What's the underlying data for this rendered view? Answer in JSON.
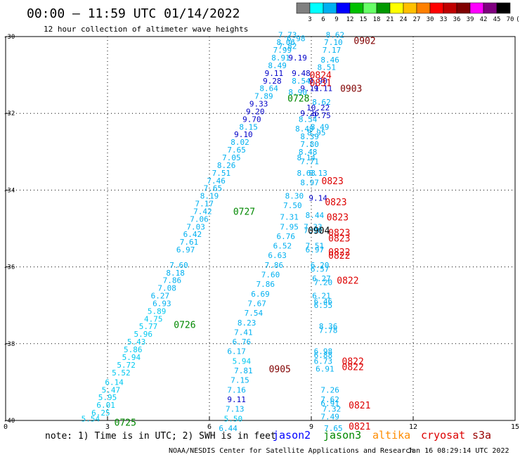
{
  "header": {
    "title": "00:00 – 11:59 UTC 01/14/2022",
    "subtitle": "12 hour collection of altimeter wave heights"
  },
  "colorbar": {
    "labels": [
      "3",
      "6",
      "9",
      "12",
      "15",
      "18",
      "21",
      "24",
      "27",
      "30",
      "33",
      "36",
      "39",
      "42",
      "45",
      "70",
      "(ft)"
    ],
    "colors": [
      "#808080",
      "#00ffff",
      "#00b0f0",
      "#0000ff",
      "#00c000",
      "#66ff66",
      "#009900",
      "#ffff00",
      "#ffc000",
      "#ff8000",
      "#ff0000",
      "#c00000",
      "#800000",
      "#ff00ff",
      "#800080",
      "#000000"
    ]
  },
  "footer": {
    "note": "note: 1) Time is in UTC; 2) SWH is in feet",
    "missions": [
      {
        "name": "jason2",
        "color": "#0000ff"
      },
      {
        "name": "jason3",
        "color": "#008800"
      },
      {
        "name": "altika",
        "color": "#ff8c00"
      },
      {
        "name": "cryosat",
        "color": "#dd0000"
      },
      {
        "name": "s3a",
        "color": "#990000"
      }
    ],
    "credit": "NOAA/NESDIS Center for Satellite Applications and Research",
    "timestamp": "Jan 16 08:29:14 UTC 2022"
  },
  "chart_data": {
    "type": "scatter",
    "xlim": [
      0,
      15
    ],
    "ylim": [
      -40,
      -30
    ],
    "xticks": [
      "0",
      "3",
      "6",
      "9",
      "12",
      "15"
    ],
    "yticks": [
      "-30",
      "-32",
      "-34",
      "-36",
      "-38",
      "-40"
    ],
    "grid": true,
    "points": [
      {
        "x": 2.5,
        "y": -39.95,
        "v": "5.54",
        "c": "#00c8f0"
      },
      {
        "x": 2.8,
        "y": -39.8,
        "v": "6.25",
        "c": "#00c8f0"
      },
      {
        "x": 2.95,
        "y": -39.6,
        "v": "6.01",
        "c": "#00c8f0"
      },
      {
        "x": 3.0,
        "y": -39.4,
        "v": "5.95",
        "c": "#00c8f0"
      },
      {
        "x": 3.1,
        "y": -39.2,
        "v": "5.47",
        "c": "#00c8f0"
      },
      {
        "x": 3.2,
        "y": -39.0,
        "v": "6.14",
        "c": "#00c8f0"
      },
      {
        "x": 3.4,
        "y": -38.75,
        "v": "5.52",
        "c": "#00c8f0"
      },
      {
        "x": 3.55,
        "y": -38.55,
        "v": "5.72",
        "c": "#00c8f0"
      },
      {
        "x": 3.7,
        "y": -38.35,
        "v": "5.94",
        "c": "#00c8f0"
      },
      {
        "x": 3.75,
        "y": -38.15,
        "v": "5.86",
        "c": "#00c8f0"
      },
      {
        "x": 3.85,
        "y": -37.95,
        "v": "5.43",
        "c": "#00c8f0"
      },
      {
        "x": 4.05,
        "y": -37.75,
        "v": "5.96",
        "c": "#00c8f0"
      },
      {
        "x": 4.2,
        "y": -37.55,
        "v": "5.77",
        "c": "#00c8f0"
      },
      {
        "x": 4.35,
        "y": -37.35,
        "v": "4.75",
        "c": "#00c8f0"
      },
      {
        "x": 4.45,
        "y": -37.15,
        "v": "5.89",
        "c": "#00c8f0"
      },
      {
        "x": 4.6,
        "y": -36.95,
        "v": "6.93",
        "c": "#00b0f0"
      },
      {
        "x": 4.55,
        "y": -36.75,
        "v": "6.27",
        "c": "#00b0f0"
      },
      {
        "x": 4.75,
        "y": -36.55,
        "v": "7.08",
        "c": "#00b0f0"
      },
      {
        "x": 4.9,
        "y": -36.35,
        "v": "7.86",
        "c": "#00b0f0"
      },
      {
        "x": 5.0,
        "y": -36.15,
        "v": "8.18",
        "c": "#00b0f0"
      },
      {
        "x": 5.1,
        "y": -35.95,
        "v": "7.60",
        "c": "#00b0f0"
      },
      {
        "x": 5.3,
        "y": -35.55,
        "v": "6.97",
        "c": "#00b0f0"
      },
      {
        "x": 5.4,
        "y": -35.35,
        "v": "7.61",
        "c": "#00b0f0"
      },
      {
        "x": 5.5,
        "y": -35.15,
        "v": "6.42",
        "c": "#00b0f0"
      },
      {
        "x": 5.6,
        "y": -34.95,
        "v": "7.03",
        "c": "#00b0f0"
      },
      {
        "x": 5.7,
        "y": -34.75,
        "v": "7.06",
        "c": "#00b0f0"
      },
      {
        "x": 5.8,
        "y": -34.55,
        "v": "7.42",
        "c": "#00b0f0"
      },
      {
        "x": 5.85,
        "y": -34.35,
        "v": "7.17",
        "c": "#00b0f0"
      },
      {
        "x": 6.0,
        "y": -34.15,
        "v": "8.19",
        "c": "#00b0f0"
      },
      {
        "x": 6.1,
        "y": -33.95,
        "v": "7.65",
        "c": "#00b0f0"
      },
      {
        "x": 6.2,
        "y": -33.75,
        "v": "7.46",
        "c": "#00b0f0"
      },
      {
        "x": 6.35,
        "y": -33.55,
        "v": "7.51",
        "c": "#00b0f0"
      },
      {
        "x": 6.5,
        "y": -33.35,
        "v": "8.26",
        "c": "#00b0f0"
      },
      {
        "x": 6.65,
        "y": -33.15,
        "v": "7.05",
        "c": "#00b0f0"
      },
      {
        "x": 6.8,
        "y": -32.95,
        "v": "7.65",
        "c": "#00b0f0"
      },
      {
        "x": 6.9,
        "y": -32.75,
        "v": "8.02",
        "c": "#00b0f0"
      },
      {
        "x": 7.0,
        "y": -32.55,
        "v": "9.10",
        "c": "#0000c8"
      },
      {
        "x": 7.15,
        "y": -32.35,
        "v": "8.15",
        "c": "#00b0f0"
      },
      {
        "x": 7.25,
        "y": -32.15,
        "v": "9.70",
        "c": "#0000c8"
      },
      {
        "x": 7.35,
        "y": -31.95,
        "v": "9.20",
        "c": "#0000c8"
      },
      {
        "x": 7.45,
        "y": -31.75,
        "v": "9.33",
        "c": "#0000c8"
      },
      {
        "x": 7.6,
        "y": -31.55,
        "v": "7.89",
        "c": "#00b0f0"
      },
      {
        "x": 7.75,
        "y": -31.35,
        "v": "8.64",
        "c": "#00b0f0"
      },
      {
        "x": 7.85,
        "y": -31.15,
        "v": "9.28",
        "c": "#0000c8"
      },
      {
        "x": 7.9,
        "y": -30.95,
        "v": "9.11",
        "c": "#0000c8"
      },
      {
        "x": 8.0,
        "y": -30.75,
        "v": "8.49",
        "c": "#00b0f0"
      },
      {
        "x": 8.1,
        "y": -30.55,
        "v": "8.91",
        "c": "#00b0f0"
      },
      {
        "x": 8.15,
        "y": -30.35,
        "v": "7.99",
        "c": "#00b0f0"
      },
      {
        "x": 8.25,
        "y": -30.15,
        "v": "8.06",
        "c": "#00b0f0"
      },
      {
        "x": 8.3,
        "y": -29.95,
        "v": "7.73",
        "c": "#00b0f0"
      },
      {
        "x": 8.55,
        "y": -30.05,
        "v": "6.98",
        "c": "#00b0f0"
      },
      {
        "x": 8.3,
        "y": -30.25,
        "v": "7.82",
        "c": "#00b0f0"
      },
      {
        "x": 8.6,
        "y": -30.55,
        "v": "9.19",
        "c": "#0000c8"
      },
      {
        "x": 8.7,
        "y": -30.95,
        "v": "9.48",
        "c": "#0000c8"
      },
      {
        "x": 8.7,
        "y": -31.15,
        "v": "8.54",
        "c": "#00b0f0"
      },
      {
        "x": 8.95,
        "y": -31.35,
        "v": "9.11",
        "c": "#0000c8"
      },
      {
        "x": 9.35,
        "y": -31.35,
        "v": "9.11",
        "c": "#0000c8"
      },
      {
        "x": 8.6,
        "y": -31.45,
        "v": "8.90",
        "c": "#00b0f0"
      },
      {
        "x": 9.2,
        "y": -31.15,
        "v": "9.90",
        "c": "#0000c8"
      },
      {
        "x": 9.2,
        "y": -31.85,
        "v": "10.22",
        "c": "#0000c8"
      },
      {
        "x": 8.95,
        "y": -32.0,
        "v": "9.26",
        "c": "#0000c8"
      },
      {
        "x": 9.3,
        "y": -32.05,
        "v": "9.75",
        "c": "#0000c8"
      },
      {
        "x": 9.7,
        "y": -29.95,
        "v": "8.62",
        "c": "#00b0f0"
      },
      {
        "x": 9.65,
        "y": -30.15,
        "v": "7.10",
        "c": "#00b0f0"
      },
      {
        "x": 9.6,
        "y": -30.35,
        "v": "7.17",
        "c": "#00b0f0"
      },
      {
        "x": 9.55,
        "y": -30.6,
        "v": "8.46",
        "c": "#00b0f0"
      },
      {
        "x": 9.45,
        "y": -30.8,
        "v": "8.51",
        "c": "#00b0f0"
      },
      {
        "x": 9.3,
        "y": -31.7,
        "v": "8.62",
        "c": "#00b0f0"
      },
      {
        "x": 8.9,
        "y": -32.15,
        "v": "8.54",
        "c": "#00b0f0"
      },
      {
        "x": 9.25,
        "y": -32.35,
        "v": "8.49",
        "c": "#00b0f0"
      },
      {
        "x": 8.8,
        "y": -32.4,
        "v": "8.49",
        "c": "#00b0f0"
      },
      {
        "x": 9.15,
        "y": -32.5,
        "v": "8.95",
        "c": "#00b0f0"
      },
      {
        "x": 8.95,
        "y": -32.6,
        "v": "8.39",
        "c": "#00b0f0"
      },
      {
        "x": 8.95,
        "y": -32.8,
        "v": "7.80",
        "c": "#00b0f0"
      },
      {
        "x": 8.9,
        "y": -33.0,
        "v": "8.48",
        "c": "#00b0f0"
      },
      {
        "x": 8.85,
        "y": -33.15,
        "v": "8.14",
        "c": "#00b0f0"
      },
      {
        "x": 8.95,
        "y": -33.25,
        "v": "7.71",
        "c": "#00b0f0"
      },
      {
        "x": 8.85,
        "y": -33.55,
        "v": "8.63",
        "c": "#00b0f0"
      },
      {
        "x": 9.2,
        "y": -33.55,
        "v": "8.13",
        "c": "#00b0f0"
      },
      {
        "x": 8.95,
        "y": -33.8,
        "v": "8.97",
        "c": "#00b0f0"
      },
      {
        "x": 8.5,
        "y": -34.15,
        "v": "8.30",
        "c": "#00b0f0"
      },
      {
        "x": 9.2,
        "y": -34.2,
        "v": "9.14",
        "c": "#0000c8"
      },
      {
        "x": 8.45,
        "y": -34.4,
        "v": "7.50",
        "c": "#00b0f0"
      },
      {
        "x": 8.35,
        "y": -34.7,
        "v": "7.31",
        "c": "#00b0f0"
      },
      {
        "x": 9.1,
        "y": -34.65,
        "v": "8.44",
        "c": "#00b0f0"
      },
      {
        "x": 8.35,
        "y": -34.95,
        "v": "7.95",
        "c": "#00b0f0"
      },
      {
        "x": 9.05,
        "y": -34.95,
        "v": "7.33",
        "c": "#00b0f0"
      },
      {
        "x": 9.05,
        "y": -35.05,
        "v": "7.90",
        "c": "#00b0f0"
      },
      {
        "x": 8.25,
        "y": -35.2,
        "v": "6.76",
        "c": "#00b0f0"
      },
      {
        "x": 8.15,
        "y": -35.45,
        "v": "6.52",
        "c": "#00b0f0"
      },
      {
        "x": 9.1,
        "y": -35.45,
        "v": "7.51",
        "c": "#00b0f0"
      },
      {
        "x": 9.1,
        "y": -35.55,
        "v": "6.97",
        "c": "#00b0f0"
      },
      {
        "x": 8.0,
        "y": -35.7,
        "v": "6.63",
        "c": "#00b0f0"
      },
      {
        "x": 7.9,
        "y": -35.95,
        "v": "7.86",
        "c": "#00b0f0"
      },
      {
        "x": 9.25,
        "y": -35.95,
        "v": "6.20",
        "c": "#00b0f0"
      },
      {
        "x": 9.25,
        "y": -36.05,
        "v": "6.57",
        "c": "#00b0f0"
      },
      {
        "x": 7.8,
        "y": -36.2,
        "v": "7.60",
        "c": "#00b0f0"
      },
      {
        "x": 9.3,
        "y": -36.3,
        "v": "6.27",
        "c": "#00b0f0"
      },
      {
        "x": 9.35,
        "y": -36.4,
        "v": "7.20",
        "c": "#00b0f0"
      },
      {
        "x": 7.65,
        "y": -36.45,
        "v": "7.86",
        "c": "#00b0f0"
      },
      {
        "x": 7.5,
        "y": -36.7,
        "v": "6.69",
        "c": "#00b0f0"
      },
      {
        "x": 9.3,
        "y": -36.75,
        "v": "6.21",
        "c": "#00b0f0"
      },
      {
        "x": 7.4,
        "y": -36.95,
        "v": "7.67",
        "c": "#00b0f0"
      },
      {
        "x": 9.35,
        "y": -36.9,
        "v": "6.46",
        "c": "#00b0f0"
      },
      {
        "x": 9.35,
        "y": -37.0,
        "v": "6.55",
        "c": "#00b0f0"
      },
      {
        "x": 7.3,
        "y": -37.2,
        "v": "7.54",
        "c": "#00b0f0"
      },
      {
        "x": 7.1,
        "y": -37.45,
        "v": "8.23",
        "c": "#00b0f0"
      },
      {
        "x": 9.5,
        "y": -37.55,
        "v": "8.36",
        "c": "#00b0f0"
      },
      {
        "x": 9.5,
        "y": -37.65,
        "v": "7.78",
        "c": "#00b0f0"
      },
      {
        "x": 7.0,
        "y": -37.7,
        "v": "7.41",
        "c": "#00b0f0"
      },
      {
        "x": 6.95,
        "y": -37.95,
        "v": "6.76",
        "c": "#00b0f0"
      },
      {
        "x": 6.8,
        "y": -38.2,
        "v": "6.17",
        "c": "#00b0f0"
      },
      {
        "x": 9.35,
        "y": -38.2,
        "v": "6.98",
        "c": "#00b0f0"
      },
      {
        "x": 9.35,
        "y": -38.3,
        "v": "6.88",
        "c": "#00b0f0"
      },
      {
        "x": 6.95,
        "y": -38.45,
        "v": "5.94",
        "c": "#00c8f0"
      },
      {
        "x": 9.35,
        "y": -38.45,
        "v": "6.73",
        "c": "#00b0f0"
      },
      {
        "x": 9.4,
        "y": -38.65,
        "v": "6.91",
        "c": "#00b0f0"
      },
      {
        "x": 7.0,
        "y": -38.7,
        "v": "7.81",
        "c": "#00b0f0"
      },
      {
        "x": 6.9,
        "y": -38.95,
        "v": "7.15",
        "c": "#00b0f0"
      },
      {
        "x": 6.8,
        "y": -39.2,
        "v": "7.16",
        "c": "#00b0f0"
      },
      {
        "x": 9.55,
        "y": -39.2,
        "v": "7.26",
        "c": "#00b0f0"
      },
      {
        "x": 6.8,
        "y": -39.45,
        "v": "9.11",
        "c": "#0000c8"
      },
      {
        "x": 9.55,
        "y": -39.45,
        "v": "7.62",
        "c": "#00b0f0"
      },
      {
        "x": 9.55,
        "y": -39.55,
        "v": "6.91",
        "c": "#00b0f0"
      },
      {
        "x": 6.75,
        "y": -39.7,
        "v": "7.13",
        "c": "#00b0f0"
      },
      {
        "x": 9.6,
        "y": -39.7,
        "v": "7.32",
        "c": "#00b0f0"
      },
      {
        "x": 6.7,
        "y": -39.95,
        "v": "5.50",
        "c": "#00c8f0"
      },
      {
        "x": 9.55,
        "y": -39.9,
        "v": "7.49",
        "c": "#00b0f0"
      },
      {
        "x": 6.55,
        "y": -40.2,
        "v": "6.44",
        "c": "#00b0f0"
      },
      {
        "x": 9.65,
        "y": -40.2,
        "v": "7.65",
        "c": "#00b0f0"
      }
    ],
    "annotations": [
      {
        "text": "0902",
        "x": 10.25,
        "y": -30.1,
        "c": "#800000"
      },
      {
        "text": "0903",
        "x": 9.85,
        "y": -31.35,
        "c": "#800000"
      },
      {
        "text": "0824",
        "x": 8.95,
        "y": -31.0,
        "c": "#dd0000"
      },
      {
        "text": "0831",
        "x": 8.95,
        "y": -31.2,
        "c": "#dd0000"
      },
      {
        "text": "0728",
        "x": 8.3,
        "y": -31.6,
        "c": "#008800"
      },
      {
        "text": "0727",
        "x": 6.7,
        "y": -34.55,
        "c": "#008800"
      },
      {
        "text": "0726",
        "x": 4.95,
        "y": -37.5,
        "c": "#008800"
      },
      {
        "text": "0725",
        "x": 3.2,
        "y": -40.05,
        "c": "#008800"
      },
      {
        "text": "0823",
        "x": 9.3,
        "y": -33.75,
        "c": "#dd0000"
      },
      {
        "text": "0823",
        "x": 9.4,
        "y": -34.3,
        "c": "#dd0000"
      },
      {
        "text": "0823",
        "x": 9.45,
        "y": -34.7,
        "c": "#dd0000"
      },
      {
        "text": "0823",
        "x": 9.5,
        "y": -35.1,
        "c": "#dd0000"
      },
      {
        "text": "0823",
        "x": 9.5,
        "y": -35.25,
        "c": "#dd0000"
      },
      {
        "text": "0904",
        "x": 8.9,
        "y": -35.05,
        "c": "#000000"
      },
      {
        "text": "0822",
        "x": 9.5,
        "y": -35.6,
        "c": "#dd0000"
      },
      {
        "text": "0822",
        "x": 9.5,
        "y": -35.7,
        "c": "#dd0000"
      },
      {
        "text": "0822",
        "x": 9.75,
        "y": -36.35,
        "c": "#dd0000"
      },
      {
        "text": "0822",
        "x": 9.9,
        "y": -38.45,
        "c": "#dd0000"
      },
      {
        "text": "0822",
        "x": 9.9,
        "y": -38.6,
        "c": "#dd0000"
      },
      {
        "text": "0905",
        "x": 7.75,
        "y": -38.65,
        "c": "#800000"
      },
      {
        "text": "0821",
        "x": 10.1,
        "y": -39.6,
        "c": "#dd0000"
      },
      {
        "text": "0821",
        "x": 10.1,
        "y": -40.15,
        "c": "#dd0000"
      }
    ]
  }
}
